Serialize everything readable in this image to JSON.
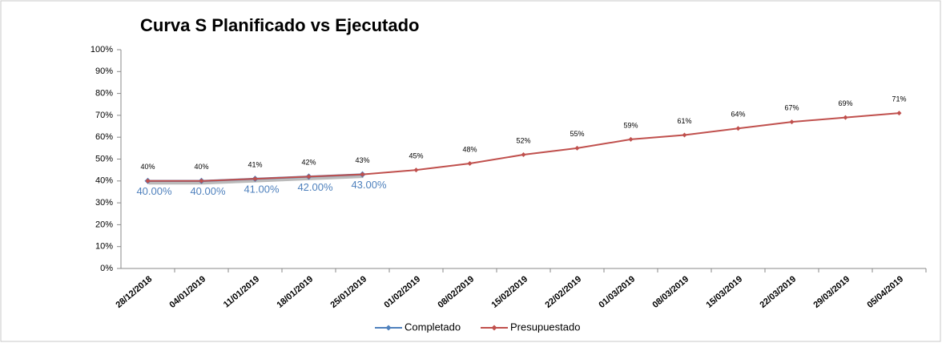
{
  "chart_data": {
    "type": "line",
    "title": "Curva S Planificado vs Ejecutado",
    "categories": [
      "28/12/2018",
      "04/01/2019",
      "11/01/2019",
      "18/01/2019",
      "25/01/2019",
      "01/02/2019",
      "08/02/2019",
      "15/02/2019",
      "22/02/2019",
      "01/03/2019",
      "08/03/2019",
      "15/03/2019",
      "22/03/2019",
      "29/03/2019",
      "05/04/2019"
    ],
    "series": [
      {
        "name": "Completado",
        "color": "#4f81bd",
        "values": [
          40,
          40,
          41,
          42,
          43,
          null,
          null,
          null,
          null,
          null,
          null,
          null,
          null,
          null,
          null
        ],
        "value_labels": [
          "40.00%",
          "40.00%",
          "41.00%",
          "42.00%",
          "43.00%",
          null,
          null,
          null,
          null,
          null,
          null,
          null,
          null,
          null,
          null
        ]
      },
      {
        "name": "Presupuestado",
        "color": "#c0504d",
        "values": [
          40,
          40,
          41,
          42,
          43,
          45,
          48,
          52,
          55,
          59,
          61,
          64,
          67,
          69,
          71
        ],
        "value_labels": [
          "40%",
          "40%",
          "41%",
          "42%",
          "43%",
          "45%",
          "48%",
          "52%",
          "55%",
          "59%",
          "61%",
          "64%",
          "67%",
          "69%",
          "71%"
        ]
      }
    ],
    "ylim": [
      0,
      100
    ],
    "yticks": [
      {
        "value": 0,
        "label": "0%"
      },
      {
        "value": 10,
        "label": "10%"
      },
      {
        "value": 20,
        "label": "20%"
      },
      {
        "value": 30,
        "label": "30%"
      },
      {
        "value": 40,
        "label": "40%"
      },
      {
        "value": 50,
        "label": "50%"
      },
      {
        "value": 60,
        "label": "60%"
      },
      {
        "value": 70,
        "label": "70%"
      },
      {
        "value": 80,
        "label": "80%"
      },
      {
        "value": 90,
        "label": "90%"
      },
      {
        "value": 100,
        "label": "100%"
      }
    ],
    "legend": "bottom"
  }
}
